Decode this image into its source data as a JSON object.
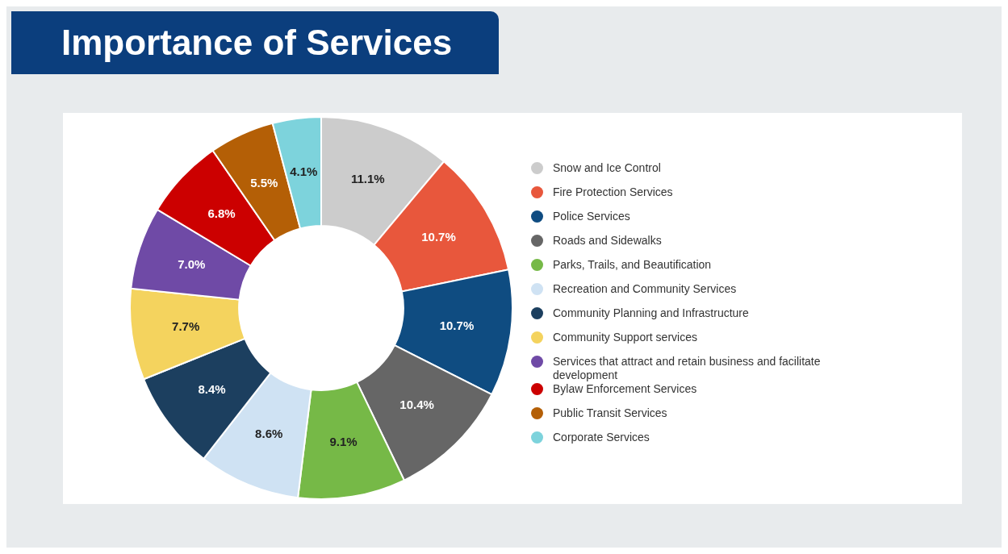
{
  "chart_data": {
    "type": "donut",
    "title": "Importance of Services",
    "categories": [
      "Snow and Ice Control",
      "Fire Protection Services",
      "Police Services",
      "Roads and Sidewalks",
      "Parks, Trails, and Beautification",
      "Recreation and Community Services",
      "Community Planning and Infrastructure",
      "Community Support services",
      "Services that attract and retain business and facilitate development",
      "Bylaw Enforcement Services",
      "Public Transit Services",
      "Corporate Services"
    ],
    "values": [
      11.1,
      10.7,
      10.7,
      10.4,
      9.1,
      8.6,
      8.4,
      7.7,
      7.0,
      6.8,
      5.5,
      4.1
    ],
    "value_labels": [
      "11.1%",
      "10.7%",
      "10.7%",
      "10.4%",
      "9.1%",
      "8.6%",
      "8.4%",
      "7.7%",
      "7.0%",
      "6.8%",
      "5.5%",
      "4.1%"
    ],
    "colors": [
      "#cccccc",
      "#e8573c",
      "#0f4c81",
      "#666666",
      "#76b947",
      "#cfe2f3",
      "#1c3f5f",
      "#f4d35e",
      "#6f4aa6",
      "#cc0000",
      "#b45f06",
      "#7dd3dc"
    ],
    "legend": "right"
  }
}
